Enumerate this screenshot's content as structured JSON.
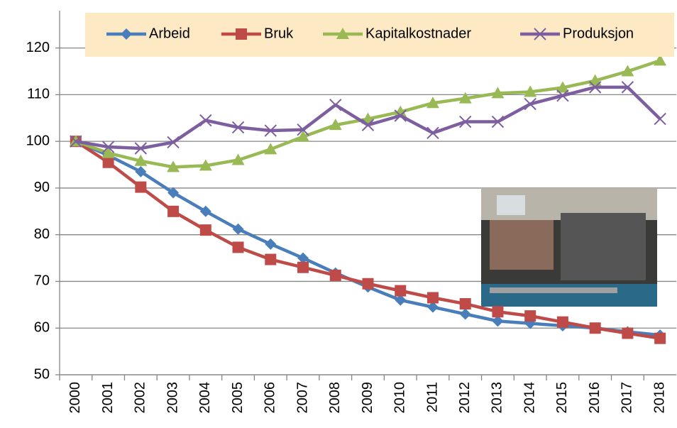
{
  "chart_data": {
    "type": "line",
    "categories": [
      "2000",
      "2001",
      "2002",
      "2003",
      "2004",
      "2005",
      "2006",
      "2007",
      "2008",
      "2009",
      "2010",
      "2011",
      "2012",
      "2013",
      "2014",
      "2015",
      "2016",
      "2017",
      "2018"
    ],
    "series": [
      {
        "name": "Arbeid",
        "color": "#4a7ebb",
        "marker": "diamond",
        "values": [
          100,
          97,
          93.5,
          89,
          85,
          81.2,
          78,
          75,
          71.8,
          68.8,
          66,
          64.5,
          63,
          61.5,
          61,
          60.5,
          60,
          59.2,
          58.5
        ]
      },
      {
        "name": "Bruk",
        "color": "#be4b48",
        "marker": "square",
        "values": [
          100,
          95.5,
          90.2,
          85,
          81,
          77.3,
          74.7,
          73,
          71.3,
          69.5,
          68,
          66.5,
          65.2,
          63.5,
          62.6,
          61.3,
          60,
          58.9,
          57.8
        ]
      },
      {
        "name": "Kapitalkostnader",
        "color": "#98b954",
        "marker": "triangle",
        "values": [
          100,
          97.5,
          95.8,
          94.5,
          94.8,
          96,
          98.3,
          101,
          103.5,
          104.8,
          106.3,
          108.2,
          109.2,
          110.3,
          110.6,
          111.5,
          113,
          115,
          117.3
        ]
      },
      {
        "name": "Produksjon",
        "color": "#7d5fa0",
        "marker": "x",
        "values": [
          100,
          98.8,
          98.5,
          99.8,
          104.5,
          103,
          102.3,
          102.5,
          107.8,
          103.5,
          105.5,
          101.8,
          104.2,
          104.2,
          108,
          109.8,
          111.6,
          111.6,
          104.8
        ]
      }
    ],
    "ylim": [
      50,
      128
    ],
    "yticks": [
      50,
      60,
      70,
      80,
      90,
      100,
      110,
      120
    ],
    "grid": true,
    "legend": "top"
  }
}
